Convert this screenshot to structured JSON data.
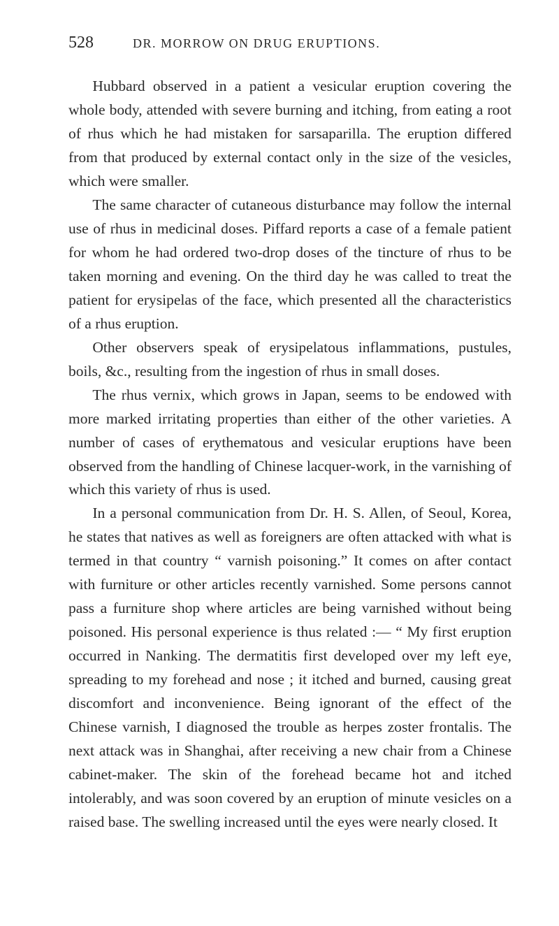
{
  "page_number": "528",
  "running_head": "DR. MORROW ON DRUG ERUPTIONS.",
  "paragraphs": [
    "Hubbard observed in a patient a vesicular eruption covering the whole body, attended with severe burning and itching, from eating a root of rhus which he had mistaken for sarsaparilla. The eruption differed from that produced by external contact only in the size of the vesicles, which were smaller.",
    "The same character of cutaneous disturbance may follow the internal use of rhus in medicinal doses. Piffard reports a case of a female patient for whom he had ordered two-drop doses of the tincture of rhus to be taken morning and evening. On the third day he was called to treat the patient for erysipelas of the face, which presented all the characteristics of a rhus eruption.",
    "Other observers speak of erysipelatous inflammations, pustules, boils, &c., resulting from the ingestion of rhus in small doses.",
    "The rhus vernix, which grows in Japan, seems to be endowed with more marked irritating properties than either of the other varieties. A number of cases of erythematous and vesicular eruptions have been observed from the handling of Chinese lacquer-work, in the varnishing of which this variety of rhus is used.",
    "In a personal communication from Dr. H. S. Allen, of Seoul, Korea, he states that natives as well as foreigners are often attacked with what is termed in that country “ varnish poisoning.” It comes on after contact with furniture or other articles recently varnished. Some persons cannot pass a furniture shop where articles are being varnished without being poisoned. His personal experience is thus related :— “ My first eruption occurred in Nanking. The dermatitis first developed over my left eye, spreading to my forehead and nose ; it itched and burned, causing great discomfort and inconvenience. Being ignorant of the effect of the Chinese varnish, I diagnosed the trouble as herpes zoster frontalis. The next attack was in Shanghai, after receiving a new chair from a Chinese cabinet-maker. The skin of the forehead became hot and itched intolerably, and was soon covered by an eruption of minute vesicles on a raised base. The swelling increased until the eyes were nearly closed. It"
  ]
}
